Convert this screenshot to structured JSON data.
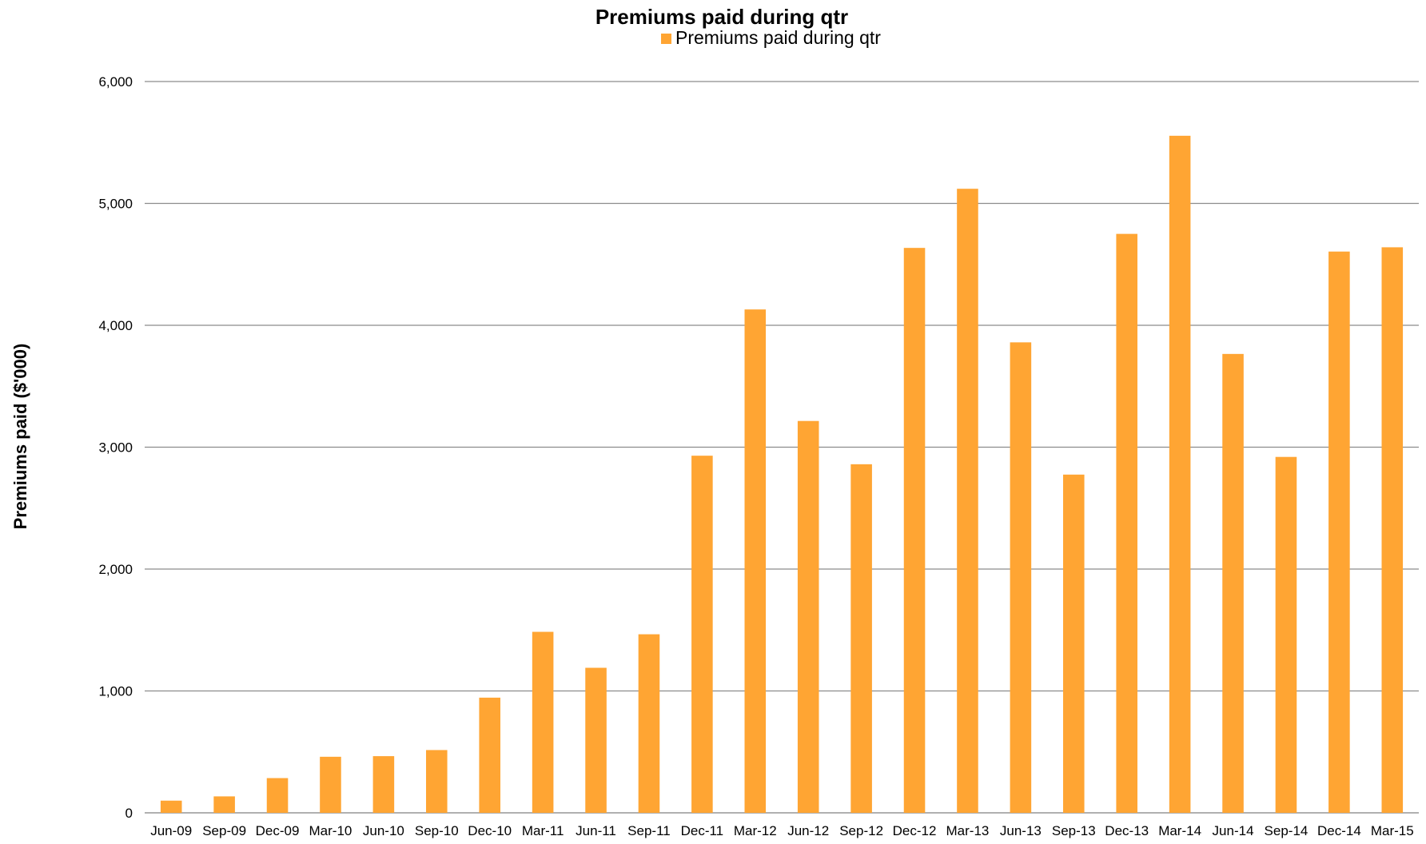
{
  "chart_data": {
    "type": "bar",
    "title": "Premiums paid during qtr",
    "xlabel": "",
    "ylabel": "Premiums paid  ($'000)",
    "legend": {
      "position": "top-center",
      "entries": [
        "Premiums paid during qtr"
      ]
    },
    "grid": true,
    "ylim": [
      0,
      6000
    ],
    "yticks": [
      "0",
      "1,000",
      "2,000",
      "3,000",
      "4,000",
      "5,000",
      "6,000"
    ],
    "ytick_values": [
      0,
      1000,
      2000,
      3000,
      4000,
      5000,
      6000
    ],
    "categories": [
      "Jun-09",
      "Sep-09",
      "Dec-09",
      "Mar-10",
      "Jun-10",
      "Sep-10",
      "Dec-10",
      "Mar-11",
      "Jun-11",
      "Sep-11",
      "Dec-11",
      "Mar-12",
      "Jun-12",
      "Sep-12",
      "Dec-12",
      "Mar-13",
      "Jun-13",
      "Sep-13",
      "Dec-13",
      "Mar-14",
      "Jun-14",
      "Sep-14",
      "Dec-14",
      "Mar-15"
    ],
    "series": [
      {
        "name": "Premiums paid during qtr",
        "color": "#FFA533",
        "values": [
          100,
          135,
          285,
          460,
          465,
          515,
          945,
          1485,
          1190,
          1465,
          2930,
          4130,
          3215,
          2860,
          4635,
          5120,
          3860,
          2775,
          4750,
          5555,
          3765,
          2920,
          4605,
          4640
        ]
      }
    ]
  }
}
